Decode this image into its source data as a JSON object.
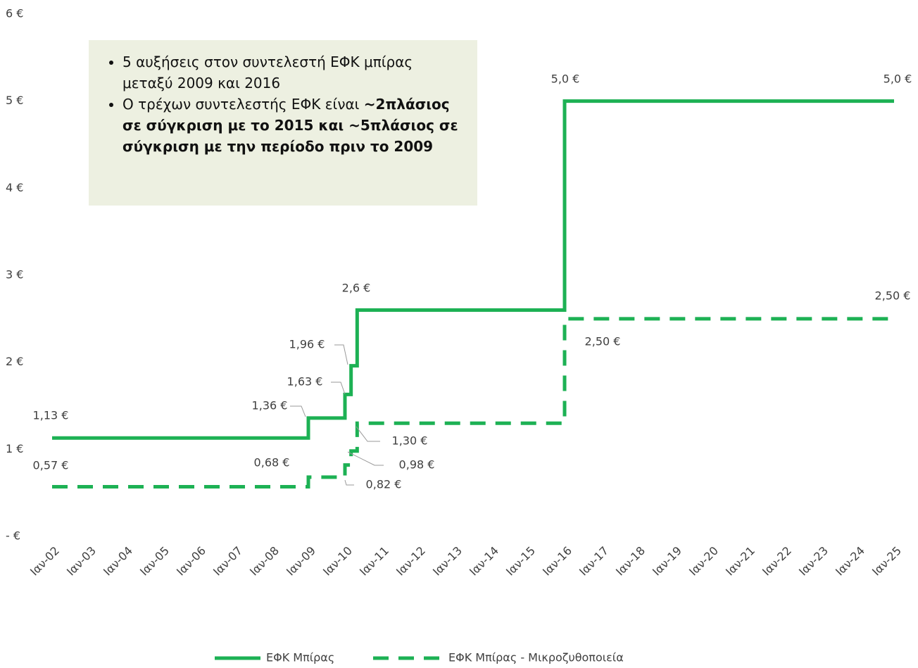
{
  "chart_data": {
    "type": "step-line",
    "x": [
      "2002-01",
      "2009-01",
      "2010-01",
      "2010-03",
      "2010-05",
      "2016-01",
      "2025-01"
    ],
    "xlim": [
      "2002-01",
      "2025-01"
    ],
    "xticks": [
      {
        "value": "2002-01",
        "label": "Ιαν-02"
      },
      {
        "value": "2003-01",
        "label": "Ιαν-03"
      },
      {
        "value": "2004-01",
        "label": "Ιαν-04"
      },
      {
        "value": "2005-01",
        "label": "Ιαν-05"
      },
      {
        "value": "2006-01",
        "label": "Ιαν-06"
      },
      {
        "value": "2007-01",
        "label": "Ιαν-07"
      },
      {
        "value": "2008-01",
        "label": "Ιαν-08"
      },
      {
        "value": "2009-01",
        "label": "Ιαν-09"
      },
      {
        "value": "2010-01",
        "label": "Ιαν-10"
      },
      {
        "value": "2011-01",
        "label": "Ιαν-11"
      },
      {
        "value": "2012-01",
        "label": "Ιαν-12"
      },
      {
        "value": "2013-01",
        "label": "Ιαν-13"
      },
      {
        "value": "2014-01",
        "label": "Ιαν-14"
      },
      {
        "value": "2015-01",
        "label": "Ιαν-15"
      },
      {
        "value": "2016-01",
        "label": "Ιαν-16"
      },
      {
        "value": "2017-01",
        "label": "Ιαν-17"
      },
      {
        "value": "2018-01",
        "label": "Ιαν-18"
      },
      {
        "value": "2019-01",
        "label": "Ιαν-19"
      },
      {
        "value": "2020-01",
        "label": "Ιαν-20"
      },
      {
        "value": "2021-01",
        "label": "Ιαν-21"
      },
      {
        "value": "2022-01",
        "label": "Ιαν-22"
      },
      {
        "value": "2023-01",
        "label": "Ιαν-23"
      },
      {
        "value": "2024-01",
        "label": "Ιαν-24"
      },
      {
        "value": "2025-01",
        "label": "Ιαν-25"
      }
    ],
    "ylim": [
      0,
      6
    ],
    "yticks": [
      {
        "value": 0,
        "label": "- €"
      },
      {
        "value": 1,
        "label": "1 €"
      },
      {
        "value": 2,
        "label": "2 €"
      },
      {
        "value": 3,
        "label": "3 €"
      },
      {
        "value": 4,
        "label": "4 €"
      },
      {
        "value": 5,
        "label": "5 €"
      },
      {
        "value": 6,
        "label": "6 €"
      }
    ],
    "series": [
      {
        "name": "ΕΦΚ Μπίρας",
        "color": "#1db154",
        "dashed": false,
        "values": [
          1.13,
          1.36,
          1.63,
          1.96,
          2.6,
          5.0,
          5.0
        ],
        "value_labels": [
          "1,13 €",
          "1,36 €",
          "1,63 €",
          "1,96 €",
          "2,6 €",
          "5,0 €",
          "5,0 €"
        ]
      },
      {
        "name": "ΕΦΚ Μπίρας - Μικροζυθοποιεία",
        "color": "#1db154",
        "dashed": true,
        "values": [
          0.57,
          0.68,
          0.82,
          0.98,
          1.3,
          2.5,
          2.5
        ],
        "value_labels": [
          "0,57 €",
          "0,68 €",
          "0,82 €",
          "0,98 €",
          "1,30 €",
          "2,50 €",
          "2,50 €"
        ]
      }
    ],
    "annotation": {
      "bullets": [
        {
          "text": "5 αυξήσεις στον συντελεστή ΕΦΚ μπίρας μεταξύ 2009 και 2016"
        },
        {
          "text": "Ο τρέχων συντελεστής ΕΦΚ είναι",
          "bold": "~2πλάσιος σε σύγκριση με το 2015 και ~5πλάσιος σε σύγκριση με την περίοδο πριν το 2009"
        }
      ]
    },
    "legend": "bottom"
  }
}
